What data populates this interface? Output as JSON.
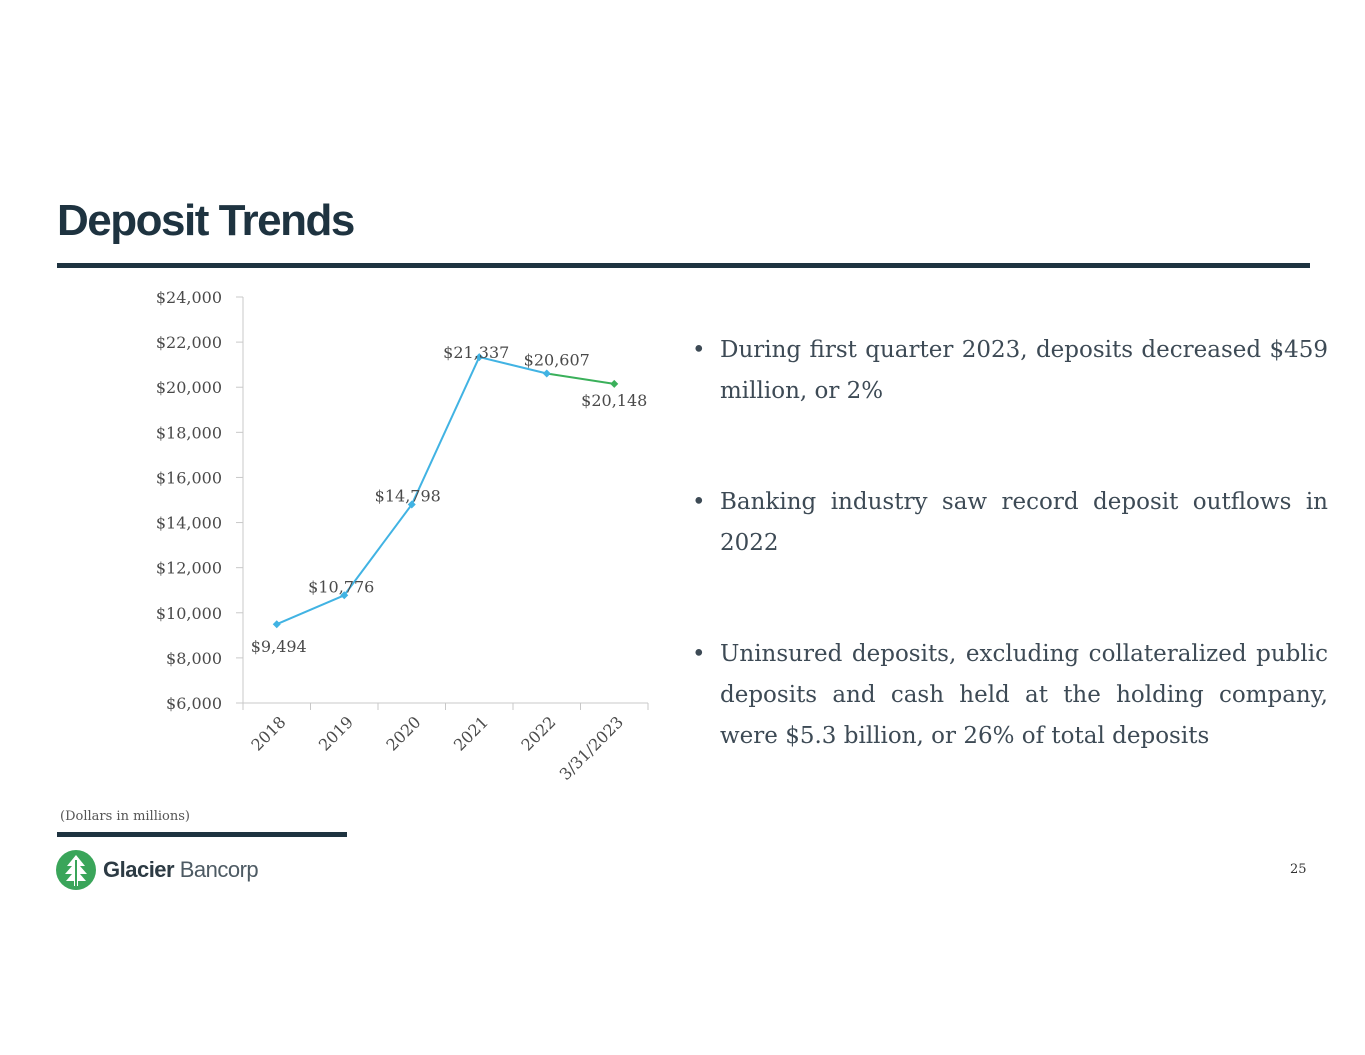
{
  "title": "Deposit Trends",
  "bullets": [
    "During first quarter 2023, deposits decreased $459 million, or 2%",
    "Banking industry saw record deposit outflows in 2022",
    "Uninsured deposits, excluding collateralized public deposits and cash held at the holding company, were $5.3 billion, or 26% of total deposits"
  ],
  "note": "(Dollars in millions)",
  "logo": {
    "brand_bold": "Glacier",
    "brand_light": " Bancorp",
    "color": "#3aa55a"
  },
  "page_number": "25",
  "chart_data": {
    "type": "line",
    "categories": [
      "2018",
      "2019",
      "2020",
      "2021",
      "2022",
      "3/31/2023"
    ],
    "values": [
      9494,
      10776,
      14798,
      21337,
      20607,
      20148
    ],
    "data_labels": [
      "$9,494",
      "$10,776",
      "$14,798",
      "$21,337",
      "$20,607",
      "$20,148"
    ],
    "yticks": [
      "$6,000",
      "$8,000",
      "$10,000",
      "$12,000",
      "$14,000",
      "$16,000",
      "$18,000",
      "$20,000",
      "$22,000",
      "$24,000"
    ],
    "ylim": [
      6000,
      24000
    ],
    "ystep": 2000,
    "colors": {
      "primary": "#41b3e3",
      "highlight": "#3ab05a",
      "axis": "#c8c8c8"
    },
    "highlight_last_segment": true,
    "grid": false
  }
}
